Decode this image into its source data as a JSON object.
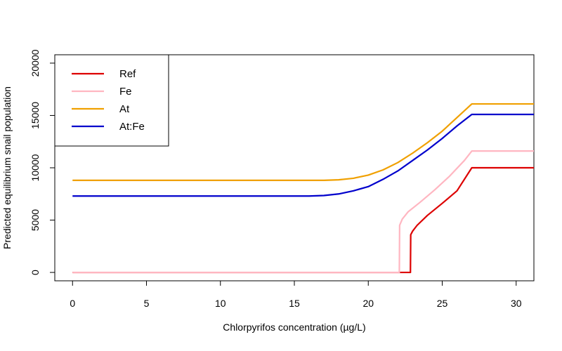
{
  "chart_data": {
    "type": "line",
    "title": "",
    "xlabel": "Chlorpyrifos concentration (µg/L)",
    "ylabel": "Predicted equilibrium snail population",
    "xlim": [
      -1.2,
      31.2
    ],
    "ylim": [
      -800,
      20800
    ],
    "x_ticks": [
      0,
      5,
      10,
      15,
      20,
      25,
      30
    ],
    "y_ticks": [
      0,
      5000,
      10000,
      15000,
      20000
    ],
    "grid": false,
    "legend_position": "top-left",
    "series": [
      {
        "name": "Ref",
        "color": "#dd0000",
        "points": [
          [
            0,
            0
          ],
          [
            22.85,
            0
          ],
          [
            22.87,
            3600
          ],
          [
            23,
            3950
          ],
          [
            23.3,
            4500
          ],
          [
            24,
            5450
          ],
          [
            25,
            6600
          ],
          [
            26,
            7800
          ],
          [
            27,
            10000
          ],
          [
            31.2,
            10000
          ]
        ]
      },
      {
        "name": "Fe",
        "color": "#ffb6c1",
        "points": [
          [
            0,
            0
          ],
          [
            22.1,
            0
          ],
          [
            22.12,
            4500
          ],
          [
            22.3,
            5100
          ],
          [
            22.7,
            5800
          ],
          [
            23.5,
            6700
          ],
          [
            24.5,
            7900
          ],
          [
            25.5,
            9200
          ],
          [
            26.5,
            10700
          ],
          [
            27,
            11600
          ],
          [
            31.2,
            11600
          ]
        ]
      },
      {
        "name": "At",
        "color": "#f0a000",
        "points": [
          [
            0,
            8800
          ],
          [
            17,
            8800
          ],
          [
            18,
            8850
          ],
          [
            19,
            9000
          ],
          [
            20,
            9300
          ],
          [
            21,
            9800
          ],
          [
            22,
            10500
          ],
          [
            23,
            11400
          ],
          [
            24,
            12400
          ],
          [
            25,
            13500
          ],
          [
            26,
            14800
          ],
          [
            27,
            16100
          ],
          [
            31.2,
            16100
          ]
        ]
      },
      {
        "name": "At:Fe",
        "color": "#0000cc",
        "points": [
          [
            0,
            7300
          ],
          [
            16,
            7300
          ],
          [
            17,
            7350
          ],
          [
            18,
            7500
          ],
          [
            19,
            7800
          ],
          [
            20,
            8200
          ],
          [
            21,
            8900
          ],
          [
            22,
            9700
          ],
          [
            23,
            10700
          ],
          [
            24,
            11700
          ],
          [
            25,
            12800
          ],
          [
            26,
            14000
          ],
          [
            27,
            15100
          ],
          [
            31.2,
            15100
          ]
        ]
      }
    ]
  }
}
